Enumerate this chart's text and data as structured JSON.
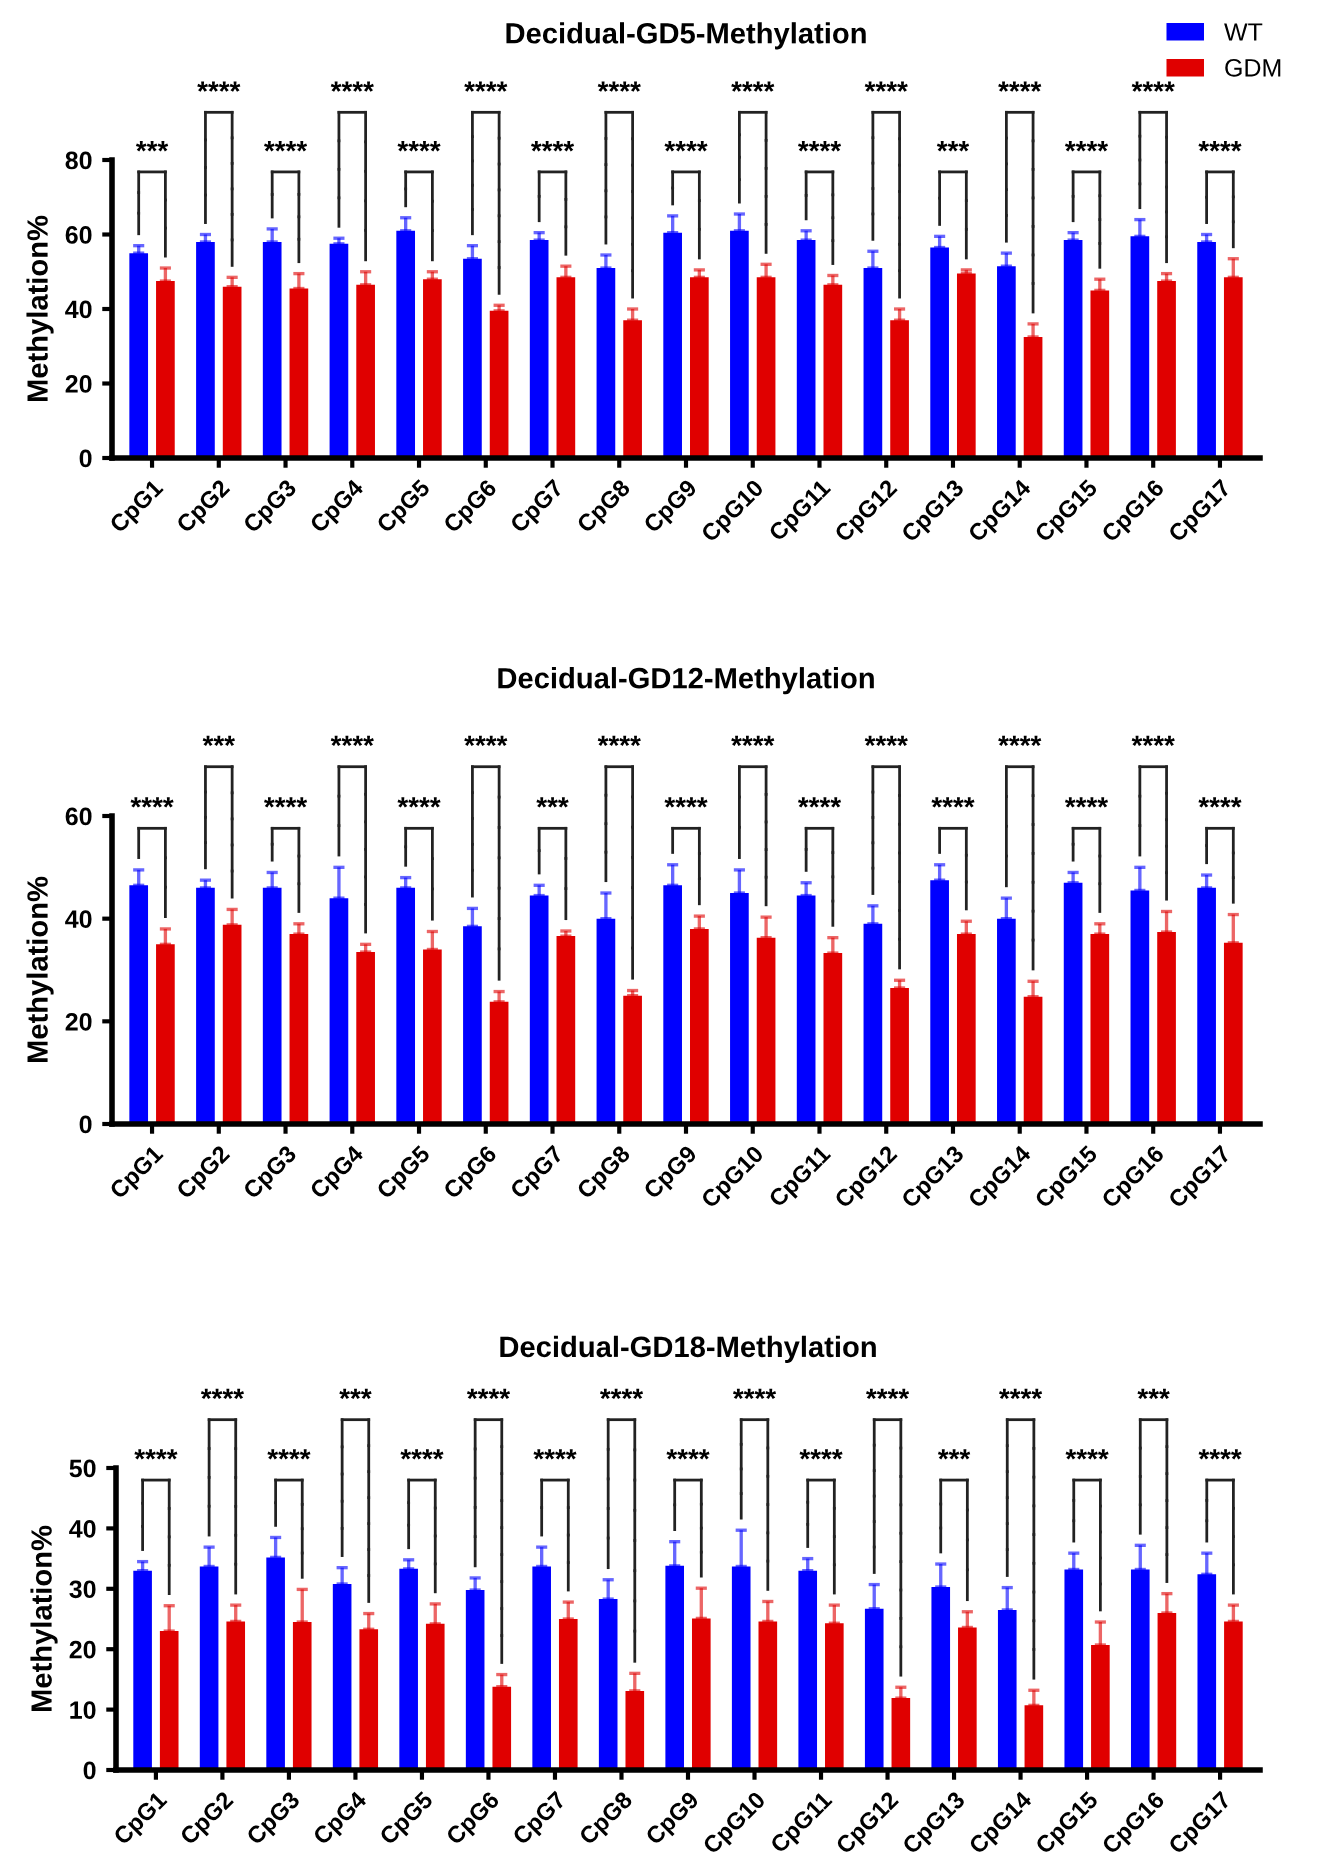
{
  "chart_data": [
    {
      "type": "bar",
      "title": "Decidual-GD5-Methylation",
      "ylabel": "Methylation%",
      "categories": [
        "CpG1",
        "CpG2",
        "CpG3",
        "CpG4",
        "CpG5",
        "CpG6",
        "CpG7",
        "CpG8",
        "CpG9",
        "CpG10",
        "CpG11",
        "CpG12",
        "CpG13",
        "CpG14",
        "CpG15",
        "CpG16",
        "CpG17"
      ],
      "series": [
        {
          "name": "WT",
          "color": "#0000ff",
          "values": [
            55,
            58,
            58,
            57.5,
            61,
            53.5,
            58.5,
            51,
            60.5,
            61,
            58.5,
            51,
            56.5,
            51.5,
            58.5,
            59.5,
            58
          ],
          "errors": [
            [
              55,
              57
            ],
            [
              58,
              60
            ],
            [
              58,
              61.5
            ],
            [
              57.5,
              59
            ],
            [
              61,
              64.5
            ],
            [
              53.5,
              57
            ],
            [
              58.5,
              60.5
            ],
            [
              51,
              54.5
            ],
            [
              60.5,
              65
            ],
            [
              61,
              65.5
            ],
            [
              58.5,
              61
            ],
            [
              51,
              55.5
            ],
            [
              56.5,
              59.5
            ],
            [
              51.5,
              55
            ],
            [
              58.5,
              60.5
            ],
            [
              59.5,
              64
            ],
            [
              58,
              60
            ]
          ]
        },
        {
          "name": "GDM",
          "color": "#e00000",
          "values": [
            47.5,
            46,
            45.5,
            46.5,
            48,
            39.5,
            48.5,
            37,
            48.5,
            48.5,
            46.5,
            37,
            49.5,
            32.5,
            45,
            47.5,
            48.5
          ],
          "errors": [
            [
              47.5,
              51
            ],
            [
              46,
              48.5
            ],
            [
              45.5,
              49.5
            ],
            [
              46.5,
              50
            ],
            [
              48,
              50
            ],
            [
              39.5,
              41
            ],
            [
              48.5,
              51.5
            ],
            [
              37,
              40
            ],
            [
              48.5,
              50.5
            ],
            [
              48.5,
              52
            ],
            [
              46.5,
              49
            ],
            [
              37,
              40
            ],
            [
              49.5,
              50.5
            ],
            [
              32.5,
              36
            ],
            [
              45,
              48
            ],
            [
              47.5,
              49.5
            ],
            [
              48.5,
              53.5
            ]
          ]
        }
      ],
      "ylim": [
        0,
        80
      ],
      "yticks": [
        0,
        20,
        40,
        60,
        80
      ],
      "grid": false,
      "legend": "top right",
      "annotations": [
        "***",
        "****",
        "****",
        "****",
        "****",
        "****",
        "****",
        "****",
        "****",
        "****",
        "****",
        "****",
        "***",
        "****",
        "****",
        "****",
        "****"
      ]
    },
    {
      "type": "bar",
      "title": "Decidual-GD12-Methylation",
      "ylabel": "Methylation%",
      "categories": [
        "CpG1",
        "CpG2",
        "CpG3",
        "CpG4",
        "CpG5",
        "CpG6",
        "CpG7",
        "CpG8",
        "CpG9",
        "CpG10",
        "CpG11",
        "CpG12",
        "CpG13",
        "CpG14",
        "CpG15",
        "CpG16",
        "CpG17"
      ],
      "series": [
        {
          "color": "#0000ff",
          "values": [
            46.5,
            46,
            46,
            44,
            46,
            38.5,
            44.5,
            40,
            46.5,
            45,
            44.5,
            39,
            47.5,
            40,
            47,
            45.5,
            46
          ],
          "errors": [
            [
              46.5,
              49.5
            ],
            [
              46,
              47.5
            ],
            [
              46,
              49
            ],
            [
              44,
              50
            ],
            [
              46,
              48
            ],
            [
              38.5,
              42
            ],
            [
              44.5,
              46.5
            ],
            [
              40,
              45
            ],
            [
              46.5,
              50.5
            ],
            [
              45,
              49.5
            ],
            [
              44.5,
              47
            ],
            [
              39,
              42.5
            ],
            [
              47.5,
              50.5
            ],
            [
              40,
              44
            ],
            [
              47,
              49
            ],
            [
              45.5,
              50
            ],
            [
              46,
              48.5
            ]
          ]
        },
        {
          "color": "#e00000",
          "values": [
            35,
            38.8,
            37,
            33.5,
            34,
            23.8,
            36.6,
            25,
            38,
            36.3,
            33.3,
            26.5,
            37,
            24.8,
            37,
            37.4,
            35.3
          ],
          "errors": [
            [
              35,
              38
            ],
            [
              38.8,
              41.8
            ],
            [
              37,
              39
            ],
            [
              33.5,
              35
            ],
            [
              34,
              37.5
            ],
            [
              23.8,
              25.8
            ],
            [
              36.6,
              37.6
            ],
            [
              25,
              26
            ],
            [
              38,
              40.5
            ],
            [
              36.3,
              40.3
            ],
            [
              33.3,
              36.3
            ],
            [
              26.5,
              28
            ],
            [
              37,
              39.5
            ],
            [
              24.8,
              27.8
            ],
            [
              37,
              39
            ],
            [
              37.4,
              41.4
            ],
            [
              35.3,
              40.8
            ]
          ]
        }
      ],
      "ylim": [
        0,
        60
      ],
      "yticks": [
        0,
        20,
        40,
        60
      ],
      "grid": false,
      "annotations": [
        "****",
        "***",
        "****",
        "****",
        "****",
        "****",
        "***",
        "****",
        "****",
        "****",
        "****",
        "****",
        "****",
        "****",
        "****",
        "****",
        "****"
      ]
    },
    {
      "type": "bar",
      "title": "Decidual-GD18-Methylation",
      "ylabel": "Methylation%",
      "categories": [
        "CpG1",
        "CpG2",
        "CpG3",
        "CpG4",
        "CpG5",
        "CpG6",
        "CpG7",
        "CpG8",
        "CpG9",
        "CpG10",
        "CpG11",
        "CpG12",
        "CpG13",
        "CpG14",
        "CpG15",
        "CpG16",
        "CpG17"
      ],
      "series": [
        {
          "color": "#0000ff",
          "values": [
            33,
            33.7,
            35.2,
            30.8,
            33.3,
            29.8,
            33.7,
            28.3,
            33.8,
            33.7,
            33,
            26.7,
            30.3,
            26.5,
            33.2,
            33.2,
            32.4
          ],
          "errors": [
            [
              33,
              34.5
            ],
            [
              33.7,
              36.9
            ],
            [
              35.2,
              38.5
            ],
            [
              30.8,
              33.5
            ],
            [
              33.3,
              34.8
            ],
            [
              29.8,
              31.8
            ],
            [
              33.7,
              36.9
            ],
            [
              28.3,
              31.5
            ],
            [
              33.8,
              37.8
            ],
            [
              33.7,
              39.7
            ],
            [
              33,
              35
            ],
            [
              26.7,
              30.7
            ],
            [
              30.3,
              34.1
            ],
            [
              26.5,
              30.2
            ],
            [
              33.2,
              35.9
            ],
            [
              33.2,
              37.2
            ],
            [
              32.4,
              35.9
            ]
          ]
        },
        {
          "color": "#e00000",
          "values": [
            23,
            24.6,
            24.5,
            23.3,
            24.2,
            13.8,
            25,
            13.1,
            25.1,
            24.6,
            24.3,
            11.9,
            23.6,
            10.7,
            20.7,
            26,
            24.6
          ],
          "errors": [
            [
              23,
              27.2
            ],
            [
              24.6,
              27.3
            ],
            [
              24.5,
              29.9
            ],
            [
              23.3,
              25.9
            ],
            [
              24.2,
              27.5
            ],
            [
              13.8,
              15.8
            ],
            [
              25,
              27.8
            ],
            [
              13.1,
              16
            ],
            [
              25.1,
              30.1
            ],
            [
              24.6,
              27.9
            ],
            [
              24.3,
              27.3
            ],
            [
              11.9,
              13.7
            ],
            [
              23.6,
              26.2
            ],
            [
              10.7,
              13.2
            ],
            [
              20.7,
              24.5
            ],
            [
              26,
              29.2
            ],
            [
              24.6,
              27.3
            ]
          ]
        }
      ],
      "ylim": [
        0,
        50
      ],
      "yticks": [
        0,
        10,
        20,
        30,
        40,
        50
      ],
      "grid": false,
      "annotations": [
        "****",
        "****",
        "****",
        "***",
        "****",
        "****",
        "****",
        "****",
        "****",
        "****",
        "****",
        "****",
        "***",
        "****",
        "****",
        "***",
        "****"
      ]
    }
  ]
}
